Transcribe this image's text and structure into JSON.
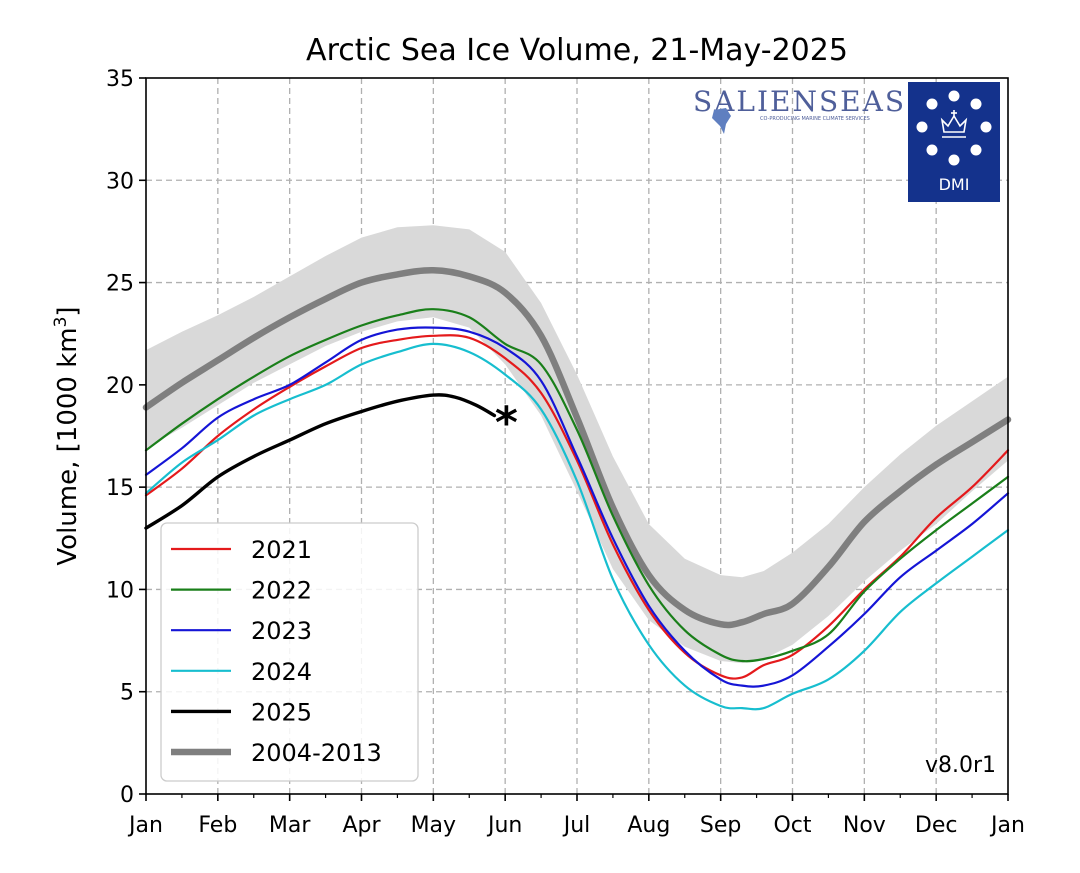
{
  "chart_data": {
    "type": "line",
    "title": "Arctic Sea Ice Volume, 21-May-2025",
    "ylabel": "Volume, [1000 km",
    "ylabel_sup": "3",
    "ylabel_end": "]",
    "xlabel": "",
    "ylim": [
      0,
      35
    ],
    "yticks": [
      0,
      5,
      10,
      15,
      20,
      25,
      30,
      35
    ],
    "x_unit": "month",
    "xlim": [
      0,
      12
    ],
    "month_ticks": [
      "Jan",
      "Feb",
      "Mar",
      "Apr",
      "May",
      "Jun",
      "Jul",
      "Aug",
      "Sep",
      "Oct",
      "Nov",
      "Dec",
      "Jan"
    ],
    "grid": true,
    "legend_position": "lower-left",
    "version_text": "v8.0r1",
    "logos": {
      "salienseas": "SALIENSEAS",
      "salienseas_sub": "CO-PRODUCING MARINE CLIMATE SERVICES",
      "dmi": "DMI"
    },
    "band": {
      "name": "2004-2013 range",
      "x": [
        0,
        0.5,
        1,
        1.5,
        2,
        2.5,
        3,
        3.5,
        4,
        4.5,
        5,
        5.5,
        6,
        6.5,
        7,
        7.5,
        8,
        8.3,
        8.6,
        9,
        9.5,
        10,
        10.5,
        11,
        11.5,
        12
      ],
      "upper": [
        21.7,
        22.6,
        23.4,
        24.3,
        25.3,
        26.3,
        27.2,
        27.7,
        27.8,
        27.6,
        26.5,
        24.0,
        20.5,
        16.5,
        13.2,
        11.5,
        10.7,
        10.6,
        10.9,
        11.8,
        13.2,
        15.0,
        16.6,
        18.0,
        19.2,
        20.4
      ],
      "lower": [
        16.9,
        17.9,
        19.0,
        20.1,
        21.0,
        21.9,
        22.6,
        23.1,
        23.3,
        22.8,
        21.0,
        18.5,
        14.8,
        11.0,
        8.5,
        7.2,
        6.5,
        6.4,
        6.6,
        7.3,
        8.7,
        10.4,
        11.9,
        13.2,
        14.8,
        16.3
      ]
    },
    "series": [
      {
        "name": "2021",
        "color": "#e41a1c",
        "width": 2.2,
        "x": [
          0,
          0.5,
          1,
          1.5,
          2,
          2.5,
          3,
          3.5,
          4,
          4.5,
          5,
          5.5,
          6,
          6.5,
          7,
          7.5,
          8,
          8.3,
          8.6,
          9,
          9.5,
          10,
          10.5,
          11,
          11.5,
          12
        ],
        "y": [
          14.6,
          15.9,
          17.5,
          18.8,
          19.9,
          20.9,
          21.8,
          22.2,
          22.4,
          22.3,
          21.3,
          19.6,
          16.3,
          12.2,
          9.0,
          6.9,
          5.8,
          5.7,
          6.3,
          6.8,
          8.2,
          10.0,
          11.6,
          13.5,
          15.0,
          16.8
        ]
      },
      {
        "name": "2022",
        "color": "#1a7f1a",
        "width": 2.2,
        "x": [
          0,
          0.5,
          1,
          1.5,
          2,
          2.5,
          3,
          3.5,
          4,
          4.5,
          5,
          5.5,
          6,
          6.5,
          7,
          7.5,
          8,
          8.3,
          8.6,
          9,
          9.5,
          10,
          10.5,
          11,
          11.5,
          12
        ],
        "y": [
          16.8,
          18.1,
          19.3,
          20.4,
          21.4,
          22.2,
          22.9,
          23.4,
          23.7,
          23.3,
          22.0,
          21.0,
          17.8,
          13.6,
          10.2,
          8.0,
          6.8,
          6.5,
          6.6,
          7.0,
          7.8,
          9.9,
          11.5,
          12.9,
          14.2,
          15.5
        ]
      },
      {
        "name": "2023",
        "color": "#1515d6",
        "width": 2.2,
        "x": [
          0,
          0.5,
          1,
          1.5,
          2,
          2.5,
          3,
          3.5,
          4,
          4.5,
          5,
          5.5,
          6,
          6.5,
          7,
          7.5,
          8,
          8.3,
          8.6,
          9,
          9.5,
          10,
          10.5,
          11,
          11.5,
          12
        ],
        "y": [
          15.6,
          16.9,
          18.4,
          19.3,
          20.0,
          21.1,
          22.2,
          22.7,
          22.8,
          22.6,
          21.8,
          20.2,
          16.5,
          12.5,
          9.2,
          7.0,
          5.6,
          5.3,
          5.3,
          5.8,
          7.2,
          8.8,
          10.6,
          11.9,
          13.2,
          14.7
        ]
      },
      {
        "name": "2024",
        "color": "#17becf",
        "width": 2.2,
        "x": [
          0,
          0.5,
          1,
          1.5,
          2,
          2.5,
          3,
          3.5,
          4,
          4.5,
          5,
          5.5,
          6,
          6.5,
          7,
          7.5,
          8,
          8.3,
          8.6,
          9,
          9.5,
          10,
          10.5,
          11,
          11.5,
          12
        ],
        "y": [
          14.7,
          16.2,
          17.3,
          18.5,
          19.3,
          20.0,
          21.0,
          21.6,
          22.0,
          21.6,
          20.5,
          18.8,
          15.3,
          10.5,
          7.3,
          5.3,
          4.3,
          4.2,
          4.2,
          4.9,
          5.6,
          7.0,
          8.9,
          10.3,
          11.6,
          12.9
        ]
      },
      {
        "name": "2025",
        "color": "#000000",
        "width": 3.4,
        "x": [
          0,
          0.5,
          1,
          1.5,
          2,
          2.5,
          3,
          3.5,
          4,
          4.3,
          4.6,
          4.85
        ],
        "y": [
          13.0,
          14.1,
          15.5,
          16.5,
          17.3,
          18.1,
          18.7,
          19.2,
          19.5,
          19.4,
          19.0,
          18.5
        ]
      },
      {
        "name": "2004-2013",
        "color": "#7f7f7f",
        "width": 6.5,
        "x": [
          0,
          0.5,
          1,
          1.5,
          2,
          2.5,
          3,
          3.5,
          4,
          4.5,
          5,
          5.5,
          6,
          6.5,
          7,
          7.5,
          8,
          8.3,
          8.6,
          9,
          9.5,
          10,
          10.5,
          11,
          11.5,
          12
        ],
        "y": [
          18.9,
          20.1,
          21.2,
          22.3,
          23.3,
          24.2,
          25.0,
          25.4,
          25.6,
          25.3,
          24.5,
          22.4,
          18.4,
          14.0,
          10.7,
          9.0,
          8.3,
          8.4,
          8.8,
          9.3,
          11.1,
          13.3,
          14.8,
          16.1,
          17.2,
          18.3
        ]
      }
    ],
    "latest_marker": {
      "x": 4.85,
      "y": 18.5,
      "symbol": "*"
    }
  }
}
